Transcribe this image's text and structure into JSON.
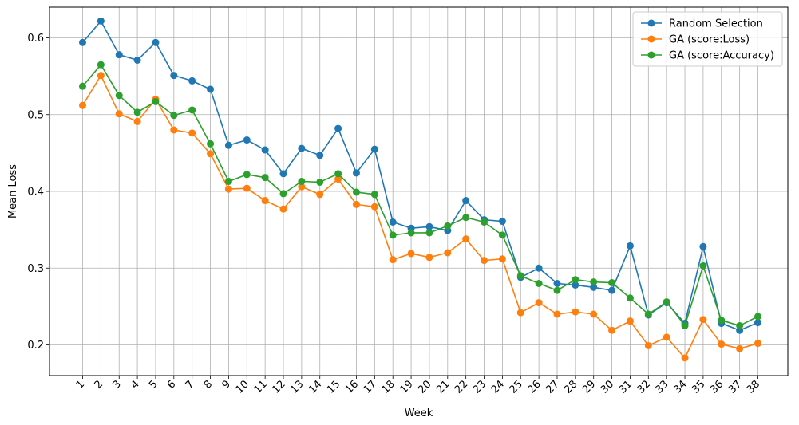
{
  "chart_data": {
    "type": "line",
    "xlabel": "Week",
    "ylabel": "Mean Loss",
    "x": [
      "1",
      "2",
      "3",
      "4",
      "5",
      "6",
      "7",
      "8",
      "9",
      "10",
      "11",
      "12",
      "13",
      "14",
      "15",
      "16",
      "17",
      "18",
      "19",
      "20",
      "21",
      "22",
      "23",
      "24",
      "25",
      "26",
      "27",
      "28",
      "29",
      "30",
      "31",
      "32",
      "33",
      "34",
      "35",
      "36",
      "37",
      "38"
    ],
    "ylim": [
      0.16,
      0.64
    ],
    "yticks": [
      0.2,
      0.3,
      0.4,
      0.5,
      0.6
    ],
    "grid": true,
    "legend_position": "top-right",
    "marker": "circle",
    "series": [
      {
        "name": "Random Selection",
        "color": "#1f77b4",
        "values": [
          0.594,
          0.622,
          0.578,
          0.571,
          0.594,
          0.551,
          0.544,
          0.533,
          0.46,
          0.467,
          0.454,
          0.423,
          0.456,
          0.447,
          0.482,
          0.424,
          0.455,
          0.36,
          0.352,
          0.354,
          0.349,
          0.388,
          0.363,
          0.361,
          0.288,
          0.3,
          0.28,
          0.278,
          0.275,
          0.271,
          0.329,
          0.239,
          0.255,
          0.228,
          0.328,
          0.228,
          0.219,
          0.229
        ]
      },
      {
        "name": "GA (score:Loss)",
        "color": "#ff7f0e",
        "values": [
          0.512,
          0.551,
          0.501,
          0.491,
          0.52,
          0.48,
          0.476,
          0.449,
          0.403,
          0.404,
          0.388,
          0.377,
          0.406,
          0.396,
          0.416,
          0.383,
          0.38,
          0.311,
          0.319,
          0.314,
          0.32,
          0.338,
          0.31,
          0.312,
          0.242,
          0.255,
          0.24,
          0.243,
          0.24,
          0.219,
          0.231,
          0.199,
          0.21,
          0.183,
          0.233,
          0.201,
          0.195,
          0.202
        ]
      },
      {
        "name": "GA (score:Accuracy)",
        "color": "#2ca02c",
        "values": [
          0.537,
          0.565,
          0.525,
          0.503,
          0.517,
          0.499,
          0.506,
          0.462,
          0.413,
          0.422,
          0.418,
          0.397,
          0.413,
          0.412,
          0.423,
          0.399,
          0.396,
          0.343,
          0.346,
          0.346,
          0.355,
          0.366,
          0.36,
          0.343,
          0.29,
          0.28,
          0.271,
          0.285,
          0.282,
          0.281,
          0.261,
          0.24,
          0.256,
          0.225,
          0.303,
          0.232,
          0.225,
          0.237
        ]
      }
    ]
  }
}
